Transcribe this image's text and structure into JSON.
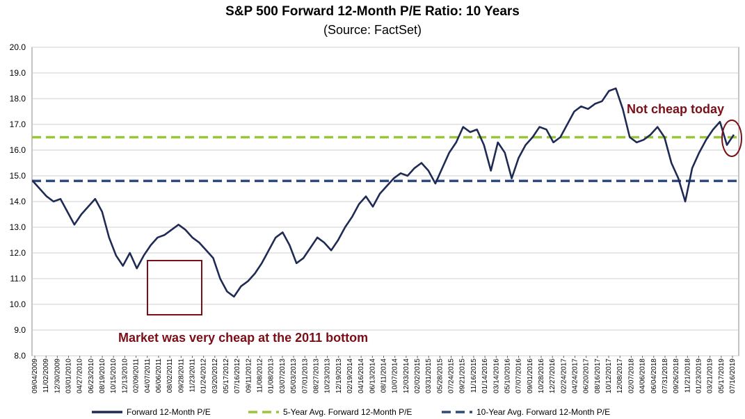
{
  "chart_data": {
    "type": "line",
    "title": "S&P 500 Forward 12-Month P/E Ratio: 10 Years",
    "subtitle": "(Source: FactSet)",
    "ylim": [
      8.0,
      20.0
    ],
    "yticks": [
      "20.0",
      "19.0",
      "18.0",
      "17.0",
      "16.0",
      "15.0",
      "14.0",
      "13.0",
      "12.0",
      "11.0",
      "10.0",
      "9.0",
      "8.0"
    ],
    "xticks": [
      "09/04/2009",
      "11/02/2009",
      "12/30/2009",
      "03/01/2010",
      "04/27/2010",
      "06/23/2010",
      "08/19/2010",
      "10/15/2010",
      "12/13/2010",
      "02/09/2011",
      "04/07/2011",
      "06/06/2011",
      "08/02/2011",
      "09/28/2011",
      "11/23/2011",
      "01/24/2012",
      "03/20/2012",
      "05/17/2012",
      "07/16/2012",
      "09/11/2012",
      "11/08/2012",
      "01/08/2013",
      "03/07/2013",
      "05/03/2013",
      "07/01/2013",
      "08/27/2013",
      "10/23/2013",
      "12/19/2013",
      "02/19/2014",
      "04/16/2014",
      "06/13/2014",
      "08/11/2014",
      "10/07/2014",
      "12/03/2014",
      "02/02/2015",
      "03/31/2015",
      "05/28/2015",
      "07/24/2015",
      "09/21/2015",
      "11/16/2015",
      "01/14/2016",
      "03/14/2016",
      "05/10/2016",
      "07/07/2016",
      "09/01/2016",
      "10/28/2016",
      "12/27/2016",
      "02/24/2017",
      "04/24/2017",
      "06/20/2017",
      "08/16/2017",
      "10/12/2017",
      "12/08/2017",
      "02/07/2018",
      "04/06/2018",
      "06/04/2018",
      "07/31/2018",
      "09/26/2018",
      "11/21/2018",
      "01/23/2019",
      "03/21/2019",
      "05/17/2019",
      "07/16/2019"
    ],
    "series": [
      {
        "name": "Forward 12-Month P/E",
        "color": "#1f2a55",
        "values": [
          14.8,
          14.5,
          14.2,
          14.0,
          14.1,
          13.6,
          13.1,
          13.5,
          13.8,
          14.1,
          13.6,
          12.6,
          11.9,
          11.5,
          12.0,
          11.4,
          11.9,
          12.3,
          12.6,
          12.7,
          12.9,
          13.1,
          12.9,
          12.6,
          12.4,
          12.1,
          11.8,
          11.0,
          10.5,
          10.3,
          10.7,
          10.9,
          11.2,
          11.6,
          12.1,
          12.6,
          12.8,
          12.3,
          11.6,
          11.8,
          12.2,
          12.6,
          12.4,
          12.1,
          12.5,
          13.0,
          13.4,
          13.9,
          14.2,
          13.8,
          14.3,
          14.6,
          14.9,
          15.1,
          15.0,
          15.3,
          15.5,
          15.2,
          14.7,
          15.3,
          15.9,
          16.3,
          16.9,
          16.7,
          16.8,
          16.2,
          15.2,
          16.3,
          15.9,
          14.9,
          15.7,
          16.2,
          16.5,
          16.9,
          16.8,
          16.3,
          16.5,
          17.0,
          17.5,
          17.7,
          17.6,
          17.8,
          17.9,
          18.3,
          18.4,
          17.6,
          16.5,
          16.3,
          16.4,
          16.6,
          16.9,
          16.5,
          15.5,
          14.9,
          14.0,
          15.3,
          15.9,
          16.4,
          16.8,
          17.1,
          16.2,
          16.6
        ]
      }
    ],
    "reference_lines": [
      {
        "name": "5-Year Avg. Forward 12-Month P/E",
        "value": 16.5,
        "color": "#9ac53a"
      },
      {
        "name": "10-Year Avg. Forward 12-Month P/E",
        "value": 14.8,
        "color": "#2e4a7a"
      }
    ],
    "annotations": [
      {
        "text": "Not cheap today"
      },
      {
        "text": "Market was very cheap at the 2011 bottom"
      }
    ],
    "legend": {
      "placement": "bottom"
    }
  }
}
